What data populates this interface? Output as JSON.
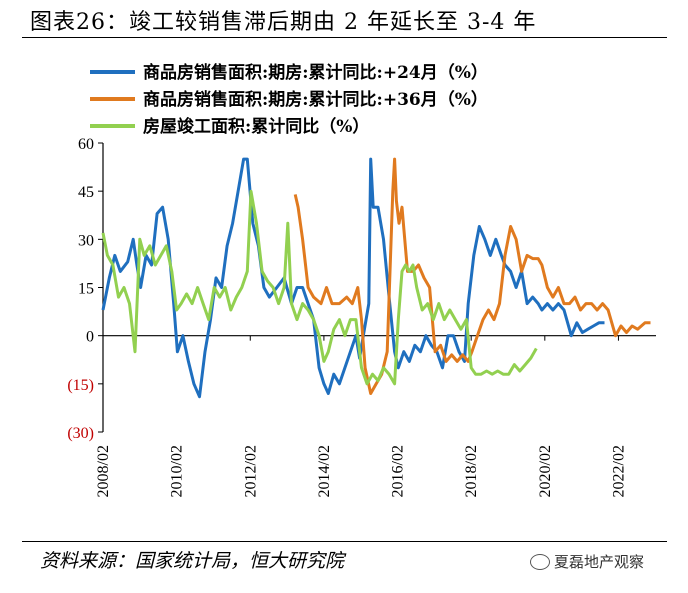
{
  "title": "图表26：竣工较销售滞后期由 2 年延长至 3-4 年",
  "source": "资料来源：国家统计局，恒大研究院",
  "watermark": "夏磊地产观察",
  "chart_data": {
    "type": "line",
    "ylim": [
      -30,
      60
    ],
    "yticks": [
      {
        "value": 60,
        "label": "60",
        "color": "#000000"
      },
      {
        "value": 45,
        "label": "45",
        "color": "#000000"
      },
      {
        "value": 30,
        "label": "30",
        "color": "#000000"
      },
      {
        "value": 15,
        "label": "15",
        "color": "#000000"
      },
      {
        "value": 0,
        "label": "0",
        "color": "#000000"
      },
      {
        "value": -15,
        "label": "(15)",
        "color": "#c00000"
      },
      {
        "value": -30,
        "label": "(30)",
        "color": "#c00000"
      }
    ],
    "xlim": [
      2008.08,
      2023.1
    ],
    "xticks": [
      {
        "value": 2008.08,
        "label": "2008/02"
      },
      {
        "value": 2010.08,
        "label": "2010/02"
      },
      {
        "value": 2012.08,
        "label": "2012/02"
      },
      {
        "value": 2014.08,
        "label": "2014/02"
      },
      {
        "value": 2016.08,
        "label": "2016/02"
      },
      {
        "value": 2018.08,
        "label": "2018/02"
      },
      {
        "value": 2020.08,
        "label": "2020/02"
      },
      {
        "value": 2022.08,
        "label": "2022/02"
      }
    ],
    "legend_position": "top",
    "series": [
      {
        "name": "商品房销售面积:期房:累计同比:+24月（%）",
        "color": "#1f6fbf",
        "points": [
          [
            2008.08,
            8
          ],
          [
            2008.25,
            18
          ],
          [
            2008.4,
            25
          ],
          [
            2008.55,
            20
          ],
          [
            2008.75,
            23
          ],
          [
            2008.9,
            30
          ],
          [
            2009.0,
            22
          ],
          [
            2009.1,
            15
          ],
          [
            2009.25,
            25
          ],
          [
            2009.4,
            22
          ],
          [
            2009.55,
            38
          ],
          [
            2009.7,
            40
          ],
          [
            2009.85,
            30
          ],
          [
            2010.0,
            10
          ],
          [
            2010.1,
            -5
          ],
          [
            2010.25,
            0
          ],
          [
            2010.4,
            -8
          ],
          [
            2010.55,
            -15
          ],
          [
            2010.7,
            -19
          ],
          [
            2010.85,
            -5
          ],
          [
            2011.0,
            5
          ],
          [
            2011.15,
            18
          ],
          [
            2011.3,
            15
          ],
          [
            2011.45,
            28
          ],
          [
            2011.6,
            35
          ],
          [
            2011.75,
            45
          ],
          [
            2011.9,
            55
          ],
          [
            2012.0,
            55
          ],
          [
            2012.15,
            35
          ],
          [
            2012.3,
            28
          ],
          [
            2012.45,
            15
          ],
          [
            2012.6,
            12
          ],
          [
            2012.8,
            15
          ],
          [
            2013.0,
            18
          ],
          [
            2013.2,
            10
          ],
          [
            2013.35,
            15
          ],
          [
            2013.5,
            15
          ],
          [
            2013.65,
            10
          ],
          [
            2013.8,
            5
          ],
          [
            2013.95,
            -10
          ],
          [
            2014.08,
            -15
          ],
          [
            2014.2,
            -18
          ],
          [
            2014.35,
            -12
          ],
          [
            2014.5,
            -15
          ],
          [
            2014.65,
            -10
          ],
          [
            2014.8,
            -5
          ],
          [
            2014.95,
            0
          ],
          [
            2015.05,
            -7
          ],
          [
            2015.15,
            0
          ],
          [
            2015.3,
            10
          ],
          [
            2015.35,
            55
          ],
          [
            2015.42,
            40
          ],
          [
            2015.55,
            40
          ],
          [
            2015.7,
            30
          ],
          [
            2015.85,
            12
          ],
          [
            2016.0,
            -5
          ],
          [
            2016.1,
            -10
          ],
          [
            2016.25,
            -5
          ],
          [
            2016.4,
            -8
          ],
          [
            2016.55,
            -3
          ],
          [
            2016.7,
            -5
          ],
          [
            2016.85,
            0
          ],
          [
            2017.0,
            -3
          ],
          [
            2017.15,
            -5
          ],
          [
            2017.3,
            -10
          ],
          [
            2017.45,
            0
          ],
          [
            2017.6,
            0
          ],
          [
            2017.75,
            -5
          ],
          [
            2017.9,
            -8
          ],
          [
            2018.0,
            10
          ],
          [
            2018.15,
            25
          ],
          [
            2018.3,
            34
          ],
          [
            2018.45,
            30
          ],
          [
            2018.6,
            25
          ],
          [
            2018.75,
            30
          ],
          [
            2018.9,
            25
          ],
          [
            2019.0,
            22
          ],
          [
            2019.15,
            20
          ],
          [
            2019.3,
            15
          ],
          [
            2019.45,
            20
          ],
          [
            2019.6,
            10
          ],
          [
            2019.75,
            12
          ],
          [
            2019.9,
            10
          ],
          [
            2020.0,
            8
          ],
          [
            2020.15,
            10
          ],
          [
            2020.3,
            8
          ],
          [
            2020.45,
            10
          ],
          [
            2020.6,
            8
          ],
          [
            2020.8,
            0
          ],
          [
            2020.95,
            4
          ],
          [
            2021.1,
            1
          ],
          [
            2021.25,
            2
          ],
          [
            2021.4,
            3
          ],
          [
            2021.55,
            4
          ],
          [
            2021.7,
            4
          ]
        ]
      },
      {
        "name": "商品房销售面积:期房:累计同比:+36月（%）",
        "color": "#e07a1f",
        "points": [
          [
            2013.3,
            44
          ],
          [
            2013.38,
            40
          ],
          [
            2013.5,
            30
          ],
          [
            2013.65,
            15
          ],
          [
            2013.8,
            12
          ],
          [
            2014.0,
            10
          ],
          [
            2014.15,
            15
          ],
          [
            2014.3,
            10
          ],
          [
            2014.5,
            10
          ],
          [
            2014.7,
            12
          ],
          [
            2014.85,
            10
          ],
          [
            2015.0,
            15
          ],
          [
            2015.1,
            5
          ],
          [
            2015.2,
            -10
          ],
          [
            2015.35,
            -18
          ],
          [
            2015.5,
            -15
          ],
          [
            2015.65,
            -12
          ],
          [
            2015.8,
            -5
          ],
          [
            2015.95,
            45
          ],
          [
            2016.0,
            55
          ],
          [
            2016.05,
            42
          ],
          [
            2016.12,
            35
          ],
          [
            2016.2,
            40
          ],
          [
            2016.35,
            20
          ],
          [
            2016.5,
            20
          ],
          [
            2016.65,
            22
          ],
          [
            2016.8,
            18
          ],
          [
            2016.95,
            15
          ],
          [
            2017.1,
            -5
          ],
          [
            2017.25,
            -3
          ],
          [
            2017.4,
            -8
          ],
          [
            2017.55,
            -6
          ],
          [
            2017.7,
            -8
          ],
          [
            2017.85,
            -6
          ],
          [
            2018.0,
            -8
          ],
          [
            2018.1,
            -5
          ],
          [
            2018.25,
            0
          ],
          [
            2018.4,
            5
          ],
          [
            2018.55,
            8
          ],
          [
            2018.7,
            5
          ],
          [
            2018.85,
            10
          ],
          [
            2019.0,
            25
          ],
          [
            2019.15,
            34
          ],
          [
            2019.3,
            30
          ],
          [
            2019.45,
            20
          ],
          [
            2019.6,
            25
          ],
          [
            2019.75,
            24
          ],
          [
            2019.9,
            24
          ],
          [
            2020.0,
            22
          ],
          [
            2020.15,
            15
          ],
          [
            2020.3,
            12
          ],
          [
            2020.45,
            15
          ],
          [
            2020.6,
            10
          ],
          [
            2020.75,
            10
          ],
          [
            2020.9,
            12
          ],
          [
            2021.05,
            8
          ],
          [
            2021.2,
            10
          ],
          [
            2021.35,
            10
          ],
          [
            2021.5,
            8
          ],
          [
            2021.65,
            10
          ],
          [
            2021.8,
            8
          ],
          [
            2022.0,
            0
          ],
          [
            2022.15,
            3
          ],
          [
            2022.3,
            1
          ],
          [
            2022.45,
            3
          ],
          [
            2022.6,
            2
          ],
          [
            2022.8,
            4
          ],
          [
            2022.95,
            4
          ]
        ]
      },
      {
        "name": "房屋竣工面积:累计同比（%）",
        "color": "#92d050",
        "points": [
          [
            2008.08,
            32
          ],
          [
            2008.2,
            25
          ],
          [
            2008.35,
            22
          ],
          [
            2008.5,
            12
          ],
          [
            2008.65,
            15
          ],
          [
            2008.8,
            10
          ],
          [
            2008.95,
            -5
          ],
          [
            2009.08,
            30
          ],
          [
            2009.2,
            25
          ],
          [
            2009.35,
            28
          ],
          [
            2009.5,
            22
          ],
          [
            2009.65,
            25
          ],
          [
            2009.8,
            28
          ],
          [
            2009.95,
            20
          ],
          [
            2010.08,
            8
          ],
          [
            2010.2,
            10
          ],
          [
            2010.35,
            13
          ],
          [
            2010.5,
            10
          ],
          [
            2010.65,
            15
          ],
          [
            2010.8,
            10
          ],
          [
            2010.95,
            5
          ],
          [
            2011.1,
            15
          ],
          [
            2011.25,
            12
          ],
          [
            2011.4,
            15
          ],
          [
            2011.55,
            8
          ],
          [
            2011.7,
            12
          ],
          [
            2011.85,
            15
          ],
          [
            2012.0,
            20
          ],
          [
            2012.1,
            45
          ],
          [
            2012.25,
            35
          ],
          [
            2012.4,
            20
          ],
          [
            2012.55,
            17
          ],
          [
            2012.7,
            15
          ],
          [
            2012.85,
            10
          ],
          [
            2013.0,
            15
          ],
          [
            2013.1,
            35
          ],
          [
            2013.2,
            10
          ],
          [
            2013.35,
            5
          ],
          [
            2013.5,
            10
          ],
          [
            2013.65,
            8
          ],
          [
            2013.8,
            5
          ],
          [
            2013.95,
            0
          ],
          [
            2014.08,
            -8
          ],
          [
            2014.2,
            -5
          ],
          [
            2014.35,
            2
          ],
          [
            2014.5,
            5
          ],
          [
            2014.65,
            0
          ],
          [
            2014.8,
            5
          ],
          [
            2014.95,
            5
          ],
          [
            2015.1,
            -10
          ],
          [
            2015.25,
            -15
          ],
          [
            2015.4,
            -12
          ],
          [
            2015.55,
            -14
          ],
          [
            2015.7,
            -10
          ],
          [
            2015.85,
            -12
          ],
          [
            2016.0,
            -15
          ],
          [
            2016.1,
            5
          ],
          [
            2016.2,
            20
          ],
          [
            2016.3,
            22
          ],
          [
            2016.4,
            20
          ],
          [
            2016.5,
            22
          ],
          [
            2016.6,
            15
          ],
          [
            2016.75,
            8
          ],
          [
            2016.9,
            10
          ],
          [
            2017.05,
            5
          ],
          [
            2017.2,
            10
          ],
          [
            2017.35,
            5
          ],
          [
            2017.5,
            8
          ],
          [
            2017.65,
            5
          ],
          [
            2017.8,
            2
          ],
          [
            2017.95,
            5
          ],
          [
            2018.08,
            -10
          ],
          [
            2018.2,
            -12
          ],
          [
            2018.35,
            -12
          ],
          [
            2018.5,
            -11
          ],
          [
            2018.65,
            -12
          ],
          [
            2018.8,
            -11
          ],
          [
            2018.95,
            -12
          ],
          [
            2019.1,
            -12
          ],
          [
            2019.25,
            -9
          ],
          [
            2019.4,
            -11
          ],
          [
            2019.55,
            -9
          ],
          [
            2019.7,
            -7
          ],
          [
            2019.85,
            -4
          ]
        ]
      }
    ]
  }
}
